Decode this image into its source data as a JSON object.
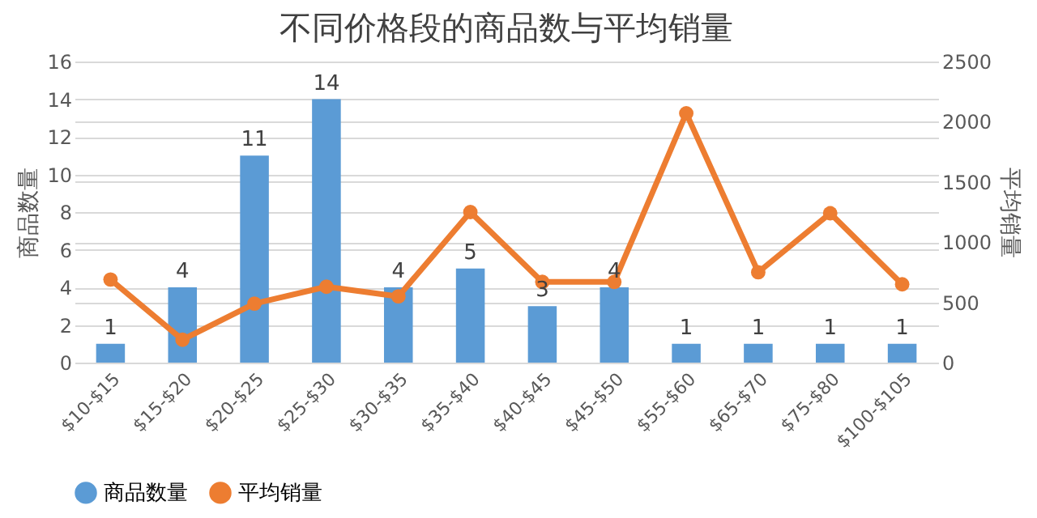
{
  "chart_data": {
    "type": "bar",
    "title": "不同价格段的商品数与平均销量",
    "ylabel": "商品数量",
    "y2label": "平均销量",
    "categories": [
      "$10-$15",
      "$15-$20",
      "$20-$25",
      "$25-$30",
      "$30-$35",
      "$35-$40",
      "$40-$45",
      "$45-$50",
      "$55-$60",
      "$65-$70",
      "$75-$80",
      "$100-$105"
    ],
    "series": [
      {
        "name": "商品数量",
        "color": "#5b9bd5",
        "values": [
          1,
          4,
          11,
          14,
          4,
          5,
          3,
          4,
          1,
          1,
          1,
          1
        ],
        "value_labels": [
          "1",
          "4",
          "11",
          "14",
          "4",
          "5",
          "3",
          "4",
          "1",
          "1",
          "1",
          "1"
        ]
      },
      {
        "name": "平均销量",
        "type": "line",
        "axis": "y2",
        "color": "#ed7d31",
        "marker": "circle",
        "values": [
          690,
          190,
          490,
          630,
          550,
          1250,
          670,
          670,
          2070,
          750,
          1240,
          650
        ]
      }
    ],
    "ylim": [
      0,
      16
    ],
    "yticks": [
      0,
      2,
      4,
      6,
      8,
      10,
      12,
      14,
      16
    ],
    "y2lim": [
      0,
      2500
    ],
    "y2ticks": [
      0,
      500,
      1000,
      1500,
      2000,
      2500
    ],
    "grid": "y",
    "legend": "bottom"
  }
}
